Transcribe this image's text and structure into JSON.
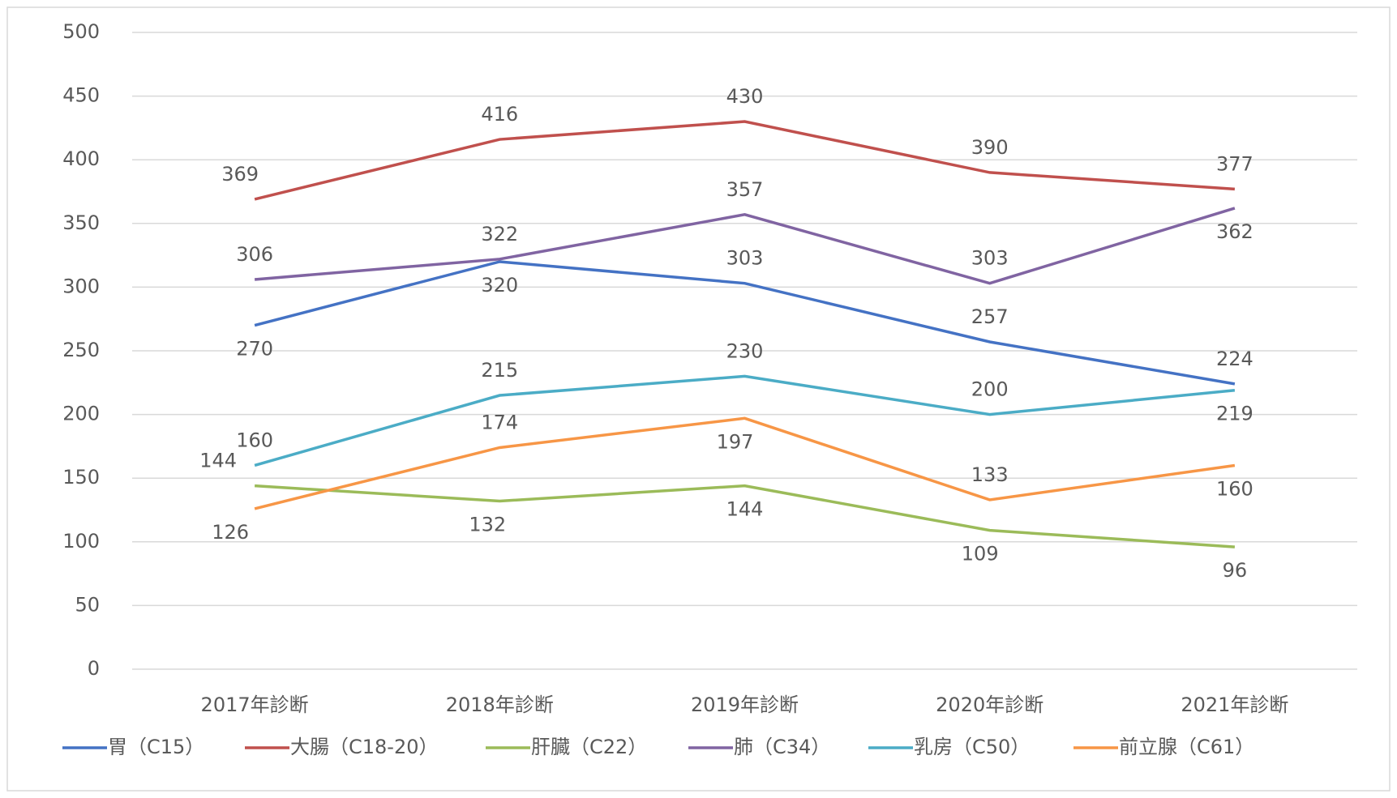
{
  "chart_data": {
    "type": "line",
    "categories": [
      "2017年診断",
      "2018年診断",
      "2019年診断",
      "2020年診断",
      "2021年診断"
    ],
    "series": [
      {
        "name": "胃（C15）",
        "color": "#4472c4",
        "values": [
          270,
          320,
          303,
          257,
          224
        ]
      },
      {
        "name": "大腸（C18-20）",
        "color": "#c0504d",
        "values": [
          369,
          416,
          430,
          390,
          377
        ]
      },
      {
        "name": "肝臓（C22）",
        "color": "#9bbb59",
        "values": [
          144,
          132,
          144,
          109,
          96
        ]
      },
      {
        "name": "肺（C34）",
        "color": "#8064a2",
        "values": [
          306,
          322,
          357,
          303,
          362
        ]
      },
      {
        "name": "乳房（C50）",
        "color": "#4bacc6",
        "values": [
          160,
          215,
          230,
          200,
          219
        ]
      },
      {
        "name": "前立腺（C61）",
        "color": "#f79646",
        "values": [
          126,
          174,
          197,
          133,
          160
        ]
      }
    ],
    "ylim": [
      0,
      500
    ],
    "yticks": [
      0,
      50,
      100,
      150,
      200,
      250,
      300,
      350,
      400,
      450,
      500
    ],
    "grid": true,
    "legend": "bottom"
  }
}
